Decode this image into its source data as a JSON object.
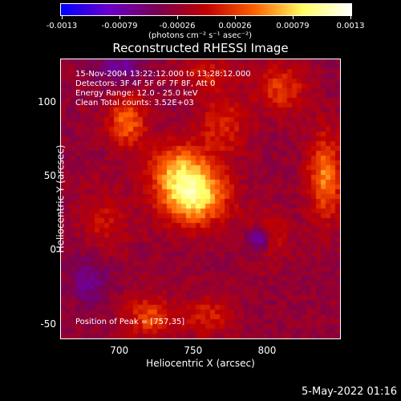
{
  "colorbar": {
    "tick_labels": [
      "-0.0013",
      "-0.00079",
      "-0.00026",
      "0.00026",
      "0.00079",
      "0.0013"
    ],
    "units": "(photons cm⁻² s⁻¹ asec⁻²)",
    "colors": [
      "#0000ff",
      "#6a00c8",
      "#7a0050",
      "#c00000",
      "#ff6000",
      "#ffff60",
      "#ffffff"
    ]
  },
  "title": "Reconstructed RHESSI Image",
  "info_lines": [
    "15-Nov-2004 13:22:12.000 to 13:28:12.000",
    "Detectors: 3F 4F 5F 6F 7F 8F, Att 0",
    "Energy Range: 12.0 - 25.0 keV",
    "Clean    Total counts: 3.52E+03"
  ],
  "peak_text": "Position of Peak = [757,35]",
  "footer_date": "5-May-2022 01:16",
  "chart_data": {
    "type": "heatmap",
    "xlabel": "Heliocentric X (arcsec)",
    "ylabel": "Heliocentric Y (arcsec)",
    "xlim": [
      660,
      850
    ],
    "ylim": [
      -60,
      130
    ],
    "xticks": [
      700,
      750,
      800
    ],
    "yticks": [
      -50,
      0,
      50,
      100
    ],
    "zlim": [
      -0.0013,
      0.0013
    ],
    "peak": [
      757,
      35
    ],
    "sources": [
      {
        "x": 750,
        "y": 38,
        "amp": 0.00125,
        "sx": 16,
        "sy": 14
      },
      {
        "x": 738,
        "y": 58,
        "amp": 0.0006,
        "sx": 14,
        "sy": 12
      },
      {
        "x": 705,
        "y": 88,
        "amp": 0.0007,
        "sx": 9,
        "sy": 12
      },
      {
        "x": 770,
        "y": 85,
        "amp": 0.00045,
        "sx": 12,
        "sy": 14
      },
      {
        "x": 690,
        "y": 20,
        "amp": 0.0003,
        "sx": 12,
        "sy": 16
      },
      {
        "x": 720,
        "y": -45,
        "amp": 0.00055,
        "sx": 12,
        "sy": 10
      },
      {
        "x": 760,
        "y": -45,
        "amp": 0.0004,
        "sx": 12,
        "sy": 10
      },
      {
        "x": 840,
        "y": 50,
        "amp": 0.0008,
        "sx": 8,
        "sy": 20
      },
      {
        "x": 800,
        "y": 10,
        "amp": 0.0004,
        "sx": 10,
        "sy": 12
      },
      {
        "x": 810,
        "y": 110,
        "amp": 0.0005,
        "sx": 12,
        "sy": 12
      },
      {
        "x": 760,
        "y": 120,
        "amp": 0.00035,
        "sx": 15,
        "sy": 8
      },
      {
        "x": 795,
        "y": 8,
        "amp": -0.0009,
        "sx": 5,
        "sy": 6
      },
      {
        "x": 700,
        "y": 125,
        "amp": -0.0004,
        "sx": 12,
        "sy": 8
      },
      {
        "x": 680,
        "y": -20,
        "amp": -0.00035,
        "sx": 10,
        "sy": 12
      }
    ],
    "background": -0.00028
  }
}
